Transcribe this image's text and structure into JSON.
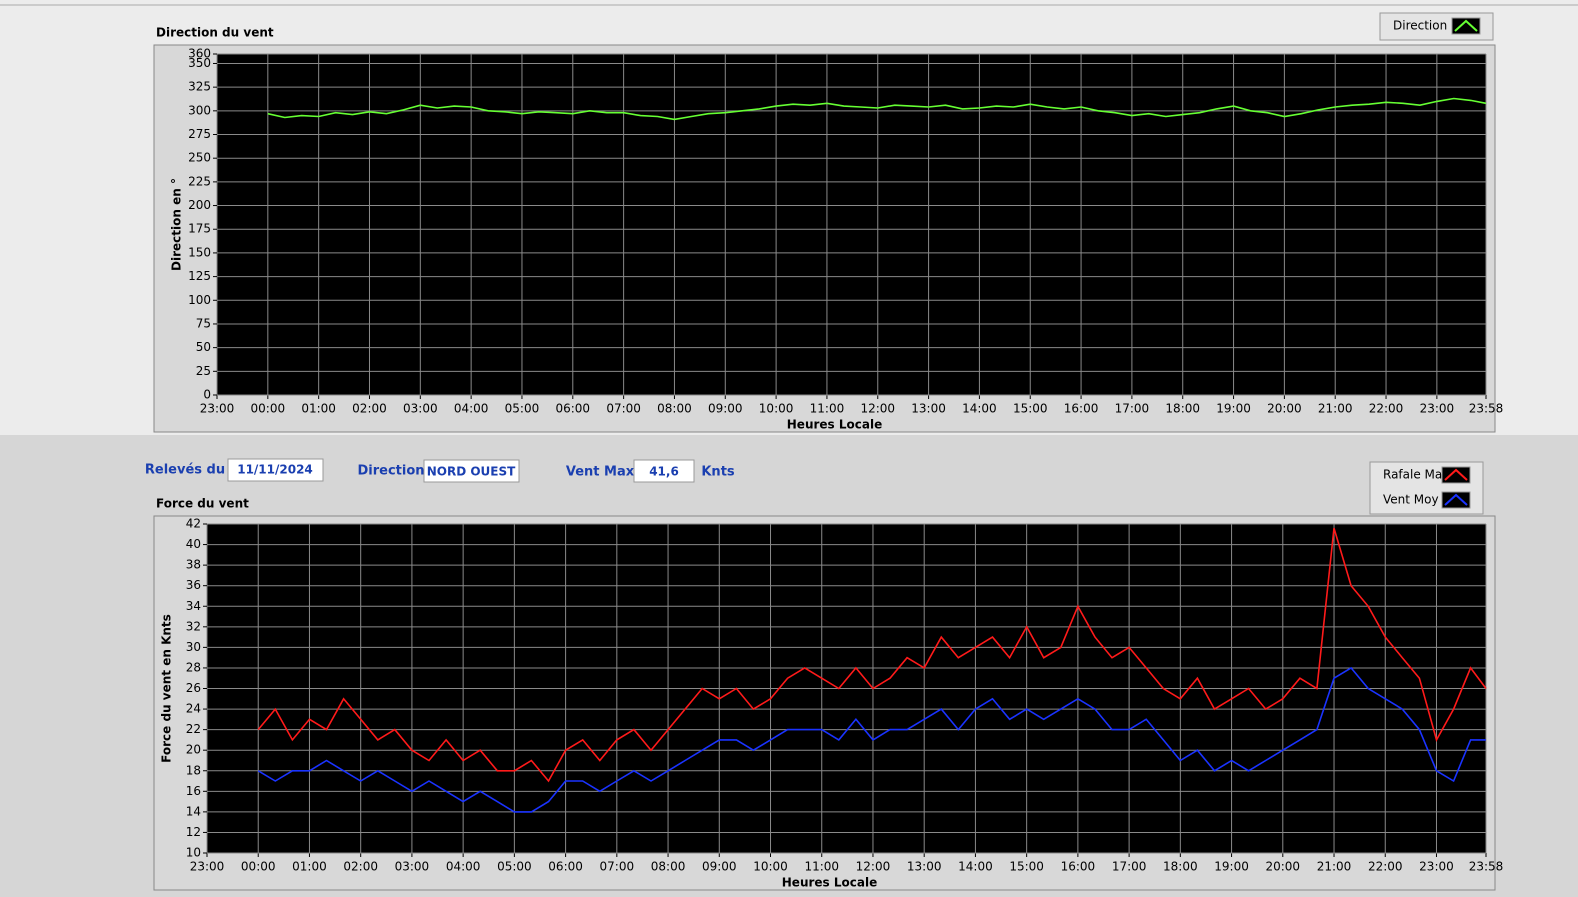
{
  "chart_data": [
    {
      "type": "line",
      "title": "Direction du vent",
      "xlabel": "Heures Locale",
      "ylabel": "Direction en °",
      "legend": "upper-right",
      "grid": true,
      "x": [
        "00:00",
        "00:20",
        "00:40",
        "01:00",
        "01:20",
        "01:40",
        "02:00",
        "02:20",
        "02:40",
        "03:00",
        "03:20",
        "03:40",
        "04:00",
        "04:20",
        "04:40",
        "05:00",
        "05:20",
        "05:40",
        "06:00",
        "06:20",
        "06:40",
        "07:00",
        "07:20",
        "07:40",
        "08:00",
        "08:20",
        "08:40",
        "09:00",
        "09:20",
        "09:40",
        "10:00",
        "10:20",
        "10:40",
        "11:00",
        "11:20",
        "11:40",
        "12:00",
        "12:20",
        "12:40",
        "13:00",
        "13:20",
        "13:40",
        "14:00",
        "14:20",
        "14:40",
        "15:00",
        "15:20",
        "15:40",
        "16:00",
        "16:20",
        "16:40",
        "17:00",
        "17:20",
        "17:40",
        "18:00",
        "18:20",
        "18:40",
        "19:00",
        "19:20",
        "19:40",
        "20:00",
        "20:20",
        "20:40",
        "21:00",
        "21:20",
        "21:40",
        "22:00",
        "22:20",
        "22:40",
        "23:00",
        "23:20",
        "23:40",
        "23:58"
      ],
      "series": [
        {
          "name": "Direction",
          "color": "#66ff33",
          "values": [
            297,
            293,
            295,
            294,
            298,
            296,
            299,
            297,
            301,
            306,
            303,
            305,
            304,
            300,
            299,
            297,
            299,
            298,
            297,
            300,
            298,
            298,
            295,
            294,
            291,
            294,
            297,
            298,
            300,
            302,
            305,
            307,
            306,
            308,
            305,
            304,
            303,
            306,
            305,
            304,
            306,
            302,
            303,
            305,
            304,
            307,
            304,
            302,
            304,
            300,
            298,
            295,
            297,
            294,
            296,
            298,
            302,
            305,
            300,
            298,
            294,
            297,
            301,
            304,
            306,
            307,
            309,
            308,
            306,
            310,
            313,
            311,
            308
          ]
        }
      ],
      "xlim": [
        "23:00",
        "23:58"
      ],
      "xticks": [
        "23:00",
        "00:00",
        "01:00",
        "02:00",
        "03:00",
        "04:00",
        "05:00",
        "06:00",
        "07:00",
        "08:00",
        "09:00",
        "10:00",
        "11:00",
        "12:00",
        "13:00",
        "14:00",
        "15:00",
        "16:00",
        "17:00",
        "18:00",
        "19:00",
        "20:00",
        "21:00",
        "22:00",
        "23:00",
        "23:58"
      ],
      "ylim": [
        0,
        360
      ],
      "yticks": [
        0,
        25,
        50,
        75,
        100,
        125,
        150,
        175,
        200,
        225,
        250,
        275,
        300,
        325,
        350,
        360
      ]
    },
    {
      "type": "line",
      "title": "Force du vent",
      "xlabel": "Heures Locale",
      "ylabel": "Force du vent en Knts",
      "legend": "upper-right",
      "grid": true,
      "x": [
        "00:00",
        "00:20",
        "00:40",
        "01:00",
        "01:20",
        "01:40",
        "02:00",
        "02:20",
        "02:40",
        "03:00",
        "03:20",
        "03:40",
        "04:00",
        "04:20",
        "04:40",
        "05:00",
        "05:20",
        "05:40",
        "06:00",
        "06:20",
        "06:40",
        "07:00",
        "07:20",
        "07:40",
        "08:00",
        "08:20",
        "08:40",
        "09:00",
        "09:20",
        "09:40",
        "10:00",
        "10:20",
        "10:40",
        "11:00",
        "11:20",
        "11:40",
        "12:00",
        "12:20",
        "12:40",
        "13:00",
        "13:20",
        "13:40",
        "14:00",
        "14:20",
        "14:40",
        "15:00",
        "15:20",
        "15:40",
        "16:00",
        "16:20",
        "16:40",
        "17:00",
        "17:20",
        "17:40",
        "18:00",
        "18:20",
        "18:40",
        "19:00",
        "19:20",
        "19:40",
        "20:00",
        "20:20",
        "20:40",
        "21:00",
        "21:20",
        "21:40",
        "22:00",
        "22:20",
        "22:40",
        "23:00",
        "23:20",
        "23:40",
        "23:58"
      ],
      "series": [
        {
          "name": "Rafale Max",
          "color": "#ff1a1a",
          "values": [
            22,
            24,
            21,
            23,
            22,
            25,
            23,
            21,
            22,
            20,
            19,
            21,
            19,
            20,
            18,
            18,
            19,
            17,
            20,
            21,
            19,
            21,
            22,
            20,
            22,
            24,
            26,
            25,
            26,
            24,
            25,
            27,
            28,
            27,
            26,
            28,
            26,
            27,
            29,
            28,
            31,
            29,
            30,
            31,
            29,
            32,
            29,
            30,
            34,
            31,
            29,
            30,
            28,
            26,
            25,
            27,
            24,
            25,
            26,
            24,
            25,
            27,
            26,
            41.6,
            36,
            34,
            31,
            29,
            27,
            21,
            24,
            28,
            26
          ]
        },
        {
          "name": "Vent Moy",
          "color": "#1a33ff",
          "values": [
            18,
            17,
            18,
            18,
            19,
            18,
            17,
            18,
            17,
            16,
            17,
            16,
            15,
            16,
            15,
            14,
            14,
            15,
            17,
            17,
            16,
            17,
            18,
            17,
            18,
            19,
            20,
            21,
            21,
            20,
            21,
            22,
            22,
            22,
            21,
            23,
            21,
            22,
            22,
            23,
            24,
            22,
            24,
            25,
            23,
            24,
            23,
            24,
            25,
            24,
            22,
            22,
            23,
            21,
            19,
            20,
            18,
            19,
            18,
            19,
            20,
            21,
            22,
            27,
            28,
            26,
            25,
            24,
            22,
            18,
            17,
            21,
            21
          ]
        }
      ],
      "xlim": [
        "23:00",
        "23:58"
      ],
      "xticks": [
        "23:00",
        "00:00",
        "01:00",
        "02:00",
        "03:00",
        "04:00",
        "05:00",
        "06:00",
        "07:00",
        "08:00",
        "09:00",
        "10:00",
        "11:00",
        "12:00",
        "13:00",
        "14:00",
        "15:00",
        "16:00",
        "17:00",
        "18:00",
        "19:00",
        "20:00",
        "21:00",
        "22:00",
        "23:00",
        "23:58"
      ],
      "ylim": [
        10,
        42
      ],
      "yticks": [
        10,
        12,
        14,
        16,
        18,
        20,
        22,
        24,
        26,
        28,
        30,
        32,
        34,
        36,
        38,
        40,
        42
      ]
    }
  ],
  "form": {
    "date_label": "Relevés du",
    "date": "11/11/2024",
    "direction_label": "Direction",
    "direction": "NORD OUEST",
    "max_label": "Vent Max",
    "max": "41,6",
    "unit": "Knts"
  }
}
